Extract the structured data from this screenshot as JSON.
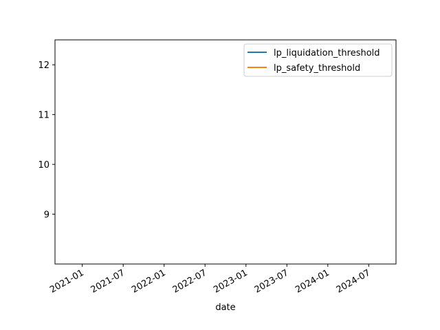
{
  "chart_data": {
    "type": "line",
    "title": "",
    "xlabel": "date",
    "ylabel": "",
    "x_tick_labels": [
      "2021-01",
      "2021-07",
      "2022-01",
      "2022-07",
      "2023-01",
      "2023-07",
      "2024-01",
      "2024-07"
    ],
    "y_tick_labels": [
      "9",
      "10",
      "11",
      "12"
    ],
    "ylim": [
      8.0,
      12.5
    ],
    "xlim": [
      "2020-09",
      "2024-11"
    ],
    "grid": false,
    "legend_position": "top-right",
    "series": [
      {
        "name": "lp_liquidation_threshold",
        "color": "#1f77b4",
        "x": [],
        "y": []
      },
      {
        "name": "lp_safety_threshold",
        "color": "#ff7f0e",
        "x": [],
        "y": []
      }
    ]
  }
}
